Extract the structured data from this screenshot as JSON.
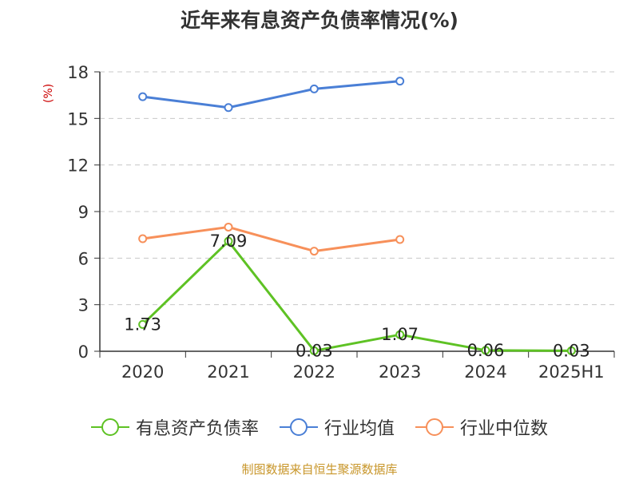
{
  "chart_data": {
    "type": "line",
    "title": "近年来有息资产负债率情况(%)",
    "ylabel": "(%)",
    "categories": [
      "2020",
      "2021",
      "2022",
      "2023",
      "2024",
      "2025H1"
    ],
    "yticks": [
      "0",
      "3",
      "6",
      "9",
      "12",
      "15",
      "18"
    ],
    "ylim": [
      0,
      18
    ],
    "grid": true,
    "legend_position": "bottom",
    "series": [
      {
        "name": "有息资产负债率",
        "color": "#5ec224",
        "values": [
          1.73,
          7.09,
          0.03,
          1.07,
          0.06,
          0.03
        ],
        "labels": [
          "1.73",
          "7.09",
          "0.03",
          "1.07",
          "0.06",
          "0.03"
        ]
      },
      {
        "name": "行业均值",
        "color": "#4a7fd6",
        "values": [
          16.4,
          15.7,
          16.9,
          17.4,
          null,
          null
        ]
      },
      {
        "name": "行业中位数",
        "color": "#f7905a",
        "values": [
          7.25,
          8.0,
          6.45,
          7.2,
          null,
          null
        ]
      }
    ]
  },
  "source": "制图数据来自恒生聚源数据库"
}
